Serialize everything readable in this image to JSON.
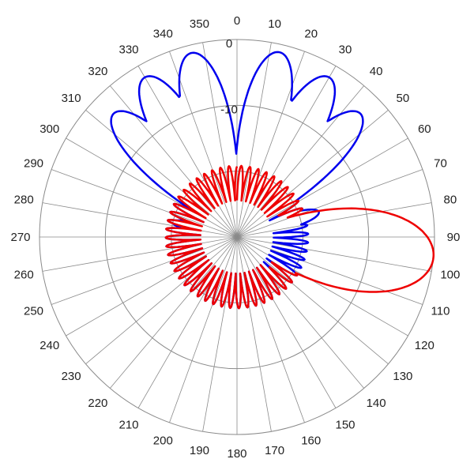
{
  "chart_data": {
    "type": "polar",
    "angle_direction": "clockwise",
    "zero_at": "top",
    "angle_tick_step": 10,
    "angle_labels": [
      "0",
      "10",
      "20",
      "30",
      "40",
      "50",
      "60",
      "70",
      "80",
      "90",
      "100",
      "110",
      "120",
      "130",
      "140",
      "150",
      "160",
      "170",
      "180",
      "190",
      "200",
      "210",
      "220",
      "230",
      "240",
      "250",
      "260",
      "270",
      "280",
      "290",
      "300",
      "310",
      "320",
      "330",
      "340",
      "350"
    ],
    "radial_tick_labels": [
      "0",
      "-10"
    ],
    "radial_range_db": [
      -30,
      0
    ],
    "grid": true,
    "series": [
      {
        "color": "#0000ee",
        "lobes": [
          {
            "angle": 346,
            "level_db": -1.2
          },
          {
            "angle": 13,
            "level_db": -1.2
          },
          {
            "angle": 330,
            "level_db": -2.0
          },
          {
            "angle": 30,
            "level_db": -2.0
          },
          {
            "angle": 315,
            "level_db": -3.5
          },
          {
            "angle": 45,
            "level_db": -3.5
          },
          {
            "angle": 283,
            "level_db": -20.0
          },
          {
            "angle": 73,
            "level_db": -17.0
          }
        ]
      },
      {
        "color": "#ee0000",
        "lobes": [
          {
            "angle": 96,
            "level_db": 0.0
          },
          {
            "angle": 68,
            "level_db": -22.0
          },
          {
            "angle": 130,
            "level_db": -23.0
          }
        ]
      }
    ]
  }
}
